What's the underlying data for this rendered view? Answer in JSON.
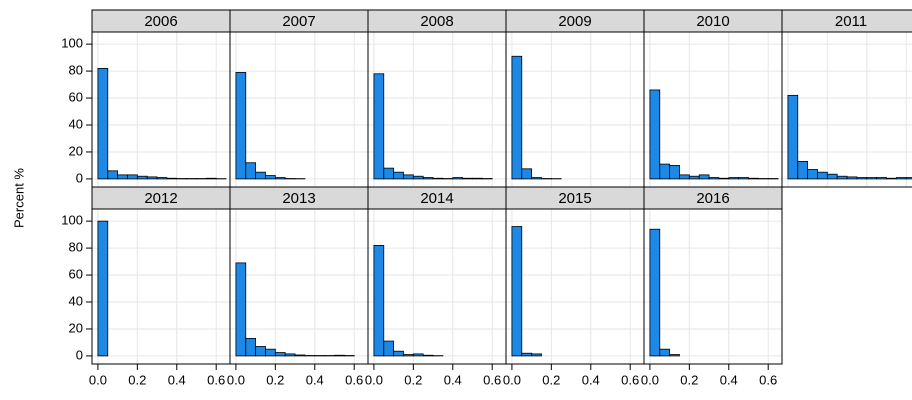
{
  "chart_data": {
    "type": "histogram",
    "y_label": "Percent %",
    "bins": [
      0,
      0.05,
      0.1,
      0.15,
      0.2,
      0.25,
      0.3,
      0.35,
      0.4,
      0.45,
      0.5,
      0.55,
      0.6,
      0.65
    ],
    "xlim": [
      -0.03,
      0.67
    ],
    "ylim": [
      -6,
      109
    ],
    "xticks": [
      {
        "value": 0,
        "label": "0.0"
      },
      {
        "value": 0.2,
        "label": "0.2"
      },
      {
        "value": 0.4,
        "label": "0.4"
      },
      {
        "value": 0.6,
        "label": "0.6"
      }
    ],
    "yticks": [
      0,
      20,
      40,
      60,
      80,
      100
    ],
    "grid": true,
    "color": "#1e88e5",
    "panels": [
      {
        "title": "2006",
        "values": [
          82,
          6,
          3,
          3,
          2,
          1.5,
          1,
          0.5,
          0.3,
          0.3,
          0.3,
          0.5,
          0.2
        ]
      },
      {
        "title": "2007",
        "values": [
          79,
          12,
          5,
          2.5,
          1,
          0.3,
          0.2,
          0,
          0,
          0,
          0,
          0,
          0
        ]
      },
      {
        "title": "2008",
        "values": [
          78,
          8,
          5,
          3,
          2,
          1,
          0.5,
          0.3,
          1,
          0.5,
          0.5,
          0.3,
          0
        ]
      },
      {
        "title": "2009",
        "values": [
          91,
          7.5,
          1,
          0.3,
          0.2,
          0,
          0,
          0,
          0,
          0,
          0,
          0,
          0
        ]
      },
      {
        "title": "2010",
        "values": [
          66,
          11,
          10,
          3,
          2,
          3,
          1,
          0.5,
          1,
          1,
          0.5,
          0.3,
          0.3
        ]
      },
      {
        "title": "2011",
        "values": [
          62,
          13,
          7,
          5,
          3.5,
          2,
          1.5,
          1,
          1,
          1,
          0.5,
          1,
          1
        ]
      },
      {
        "title": "2012",
        "values": [
          100,
          0,
          0,
          0,
          0,
          0,
          0,
          0,
          0,
          0,
          0,
          0,
          0
        ]
      },
      {
        "title": "2013",
        "values": [
          69,
          13,
          7,
          5,
          2.5,
          1.5,
          0.7,
          0.3,
          0.3,
          0.3,
          0.5,
          0.3,
          0
        ]
      },
      {
        "title": "2014",
        "values": [
          82,
          11,
          3.5,
          1,
          1.5,
          0.5,
          0.2,
          0,
          0,
          0,
          0,
          0,
          0
        ]
      },
      {
        "title": "2015",
        "values": [
          96,
          2,
          1.5,
          0,
          0,
          0,
          0,
          0,
          0,
          0,
          0,
          0,
          0
        ]
      },
      {
        "title": "2016",
        "values": [
          94,
          5,
          1,
          0,
          0,
          0,
          0,
          0,
          0,
          0,
          0,
          0,
          0
        ]
      }
    ]
  }
}
